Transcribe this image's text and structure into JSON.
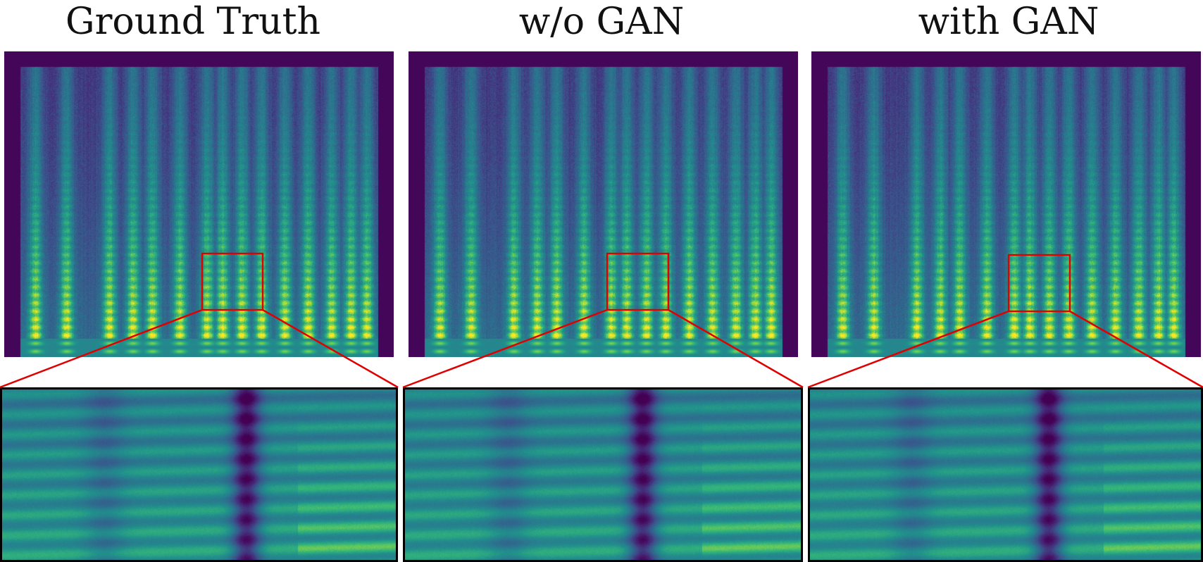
{
  "figure": {
    "panels": [
      {
        "id": "gt",
        "title": "Ground Truth"
      },
      {
        "id": "nogan",
        "title": "w/o GAN"
      },
      {
        "id": "gan",
        "title": "with GAN"
      }
    ]
  },
  "colors": {
    "background_dark": "#440154",
    "mid": "#31688e",
    "teal": "#21918c",
    "green": "#35b779",
    "bright": "#bddf26",
    "zoom_box": "#e00000"
  }
}
